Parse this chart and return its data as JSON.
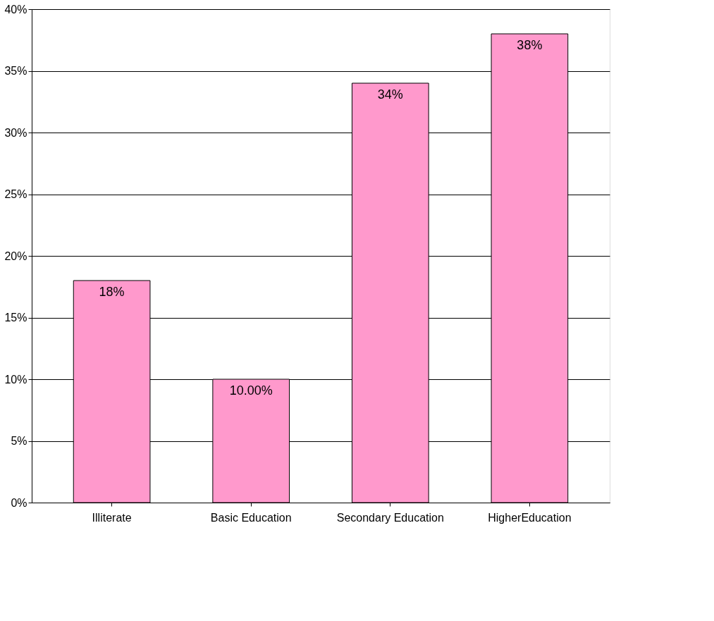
{
  "chart_data": {
    "type": "bar",
    "categories": [
      "Illiterate",
      "Basic Education",
      "Secondary Education",
      "HigherEducation"
    ],
    "values": [
      18,
      10,
      34,
      38
    ],
    "value_labels": [
      "18%",
      "10.00%",
      "34%",
      "38%"
    ],
    "color": "#ff99cc",
    "ylim": [
      0,
      40
    ],
    "yticks": [
      {
        "value": 0,
        "label": "0%"
      },
      {
        "value": 5,
        "label": "5%"
      },
      {
        "value": 10,
        "label": "10%"
      },
      {
        "value": 15,
        "label": "15%"
      },
      {
        "value": 20,
        "label": "20%"
      },
      {
        "value": 25,
        "label": "25%"
      },
      {
        "value": 30,
        "label": "30%"
      },
      {
        "value": 35,
        "label": "35%"
      },
      {
        "value": 40,
        "label": "40%"
      }
    ],
    "grid": "y"
  }
}
